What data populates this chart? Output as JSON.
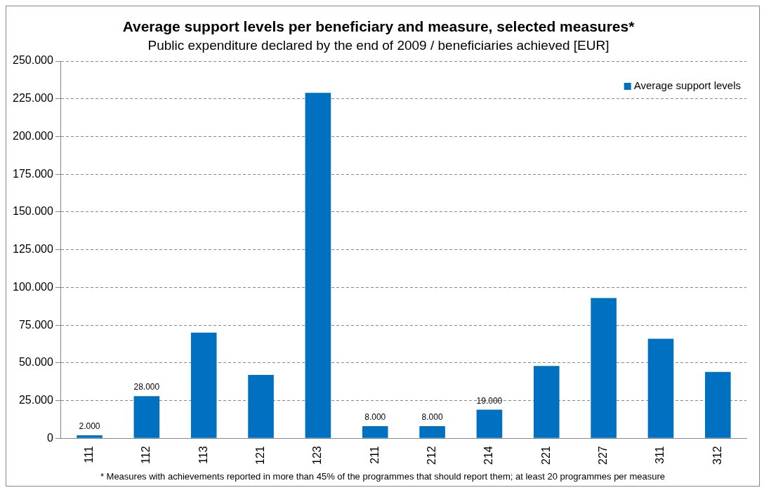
{
  "chart_data": {
    "type": "bar",
    "title": "Average support levels per beneficiary and measure, selected measures*",
    "subtitle": "Public expenditure declared by the end of 2009 / beneficiaries achieved [EUR]",
    "categories": [
      "111",
      "112",
      "113",
      "121",
      "123",
      "211",
      "212",
      "214",
      "221",
      "227",
      "311",
      "312"
    ],
    "series": [
      {
        "name": "Average support levels",
        "color": "#0070c0",
        "values": [
          2000,
          28000,
          70000,
          42000,
          229000,
          8000,
          8000,
          19000,
          48000,
          93000,
          66000,
          44000
        ],
        "value_labels": [
          "2.000",
          "28.000",
          null,
          null,
          null,
          "8.000",
          "8.000",
          "19.000",
          null,
          null,
          null,
          null
        ]
      }
    ],
    "ylim": [
      0,
      250000
    ],
    "yticks": [
      0,
      {
        "value": 25000,
        "label": "25.000"
      },
      {
        "value": 50000,
        "label": "50.000"
      },
      {
        "value": 75000,
        "label": "75.000"
      },
      {
        "value": 100000,
        "label": "100.000"
      },
      {
        "value": 125000,
        "label": "125.000"
      },
      {
        "value": 150000,
        "label": "150.000"
      },
      {
        "value": 175000,
        "label": "175.000"
      },
      {
        "value": 200000,
        "label": "200.000"
      },
      {
        "value": 225000,
        "label": "225.000"
      },
      {
        "value": 250000,
        "label": "250.000"
      }
    ],
    "grid": "y",
    "line_style": "dashed",
    "legend": "top right",
    "annotations": [
      "* Measures with achievements reported in more than 45% of the programmes that should report them; at least 20 programmes per measure"
    ]
  }
}
